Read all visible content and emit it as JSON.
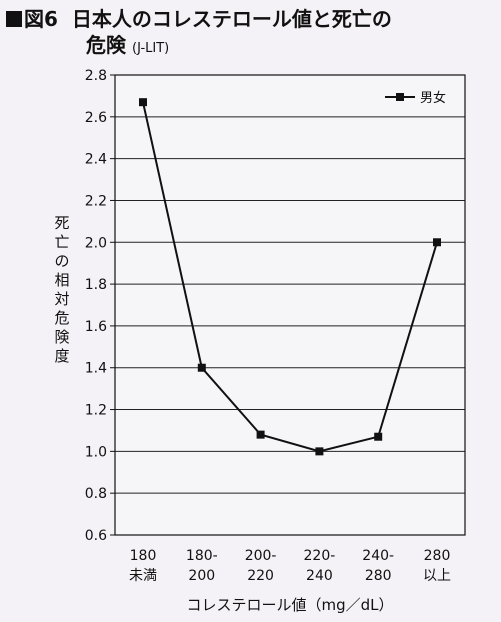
{
  "header": {
    "fig_label": "図6",
    "title": "日本人のコレステロール値と死亡の",
    "title2": "危険",
    "source": "(J-LIT)"
  },
  "chart_data": {
    "type": "line",
    "categories": [
      [
        "180",
        "未満"
      ],
      [
        "180-",
        "200"
      ],
      [
        "200-",
        "220"
      ],
      [
        "220-",
        "240"
      ],
      [
        "240-",
        "280"
      ],
      [
        "280",
        "以上"
      ]
    ],
    "series": [
      {
        "name": "男女",
        "values": [
          2.67,
          1.4,
          1.08,
          1.0,
          1.07,
          2.0
        ]
      }
    ],
    "xlabel": "コレステロール値（mg／dL）",
    "ylabel": "死亡の相対危険度",
    "ylim": [
      0.6,
      2.8
    ],
    "yticks": [
      "0.6",
      "0.8",
      "1.0",
      "1.2",
      "1.4",
      "1.6",
      "1.8",
      "2.0",
      "2.2",
      "2.4",
      "2.6",
      "2.8"
    ],
    "grid": true,
    "legend": "top-right",
    "colors": {
      "line": "#111111",
      "grid": "#222222",
      "plot_bg": "#f6f5f8"
    }
  }
}
